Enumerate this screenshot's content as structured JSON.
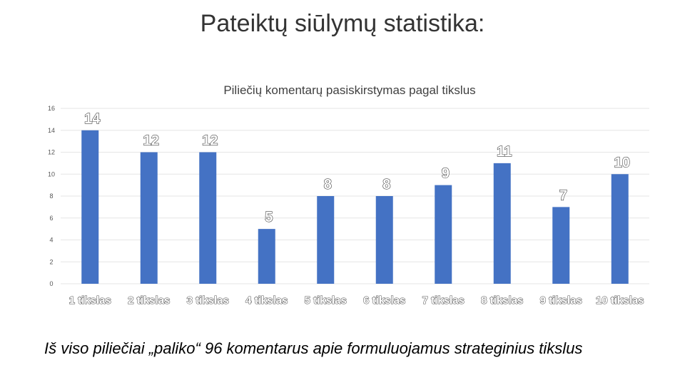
{
  "slide": {
    "title": "Pateiktų siūlymų statistika:",
    "footnote": "Iš viso piliečiai „paliko“ 96 komentarus apie formuluojamus strateginius tikslus"
  },
  "chart_data": {
    "type": "bar",
    "title": "Piliečių komentarų pasiskirstymas pagal tikslus",
    "xlabel": "",
    "ylabel": "",
    "categories": [
      "1 tikslas",
      "2 tikslas",
      "3 tikslas",
      "4 tikslas",
      "5 tikslas",
      "6 tikslas",
      "7 tikslas",
      "8 tikslas",
      "9 tikslas",
      "10 tikslas"
    ],
    "values": [
      14,
      12,
      12,
      5,
      8,
      8,
      9,
      11,
      7,
      10
    ],
    "ylim": [
      0,
      16
    ],
    "yticks": [
      0,
      2,
      4,
      6,
      8,
      10,
      12,
      14,
      16
    ],
    "grid": true,
    "legend": "none",
    "bar_color": "#4472C4",
    "grid_color": "#e6e6e6"
  }
}
